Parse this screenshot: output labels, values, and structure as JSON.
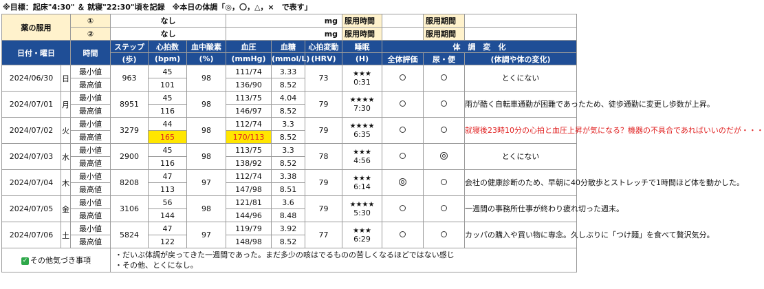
{
  "top_note": "※目標：起床\"4:30\" ＆ 就寝\"22:30\"頃を記録　※本日の体調「◎，〇，△，×　で表す」",
  "medication": {
    "label": "薬の服用",
    "rows": [
      {
        "num": "①",
        "name": "なし",
        "unit": "mg",
        "time_label": "服用時間",
        "time_value": "",
        "period_label": "服用期間",
        "period_value": ""
      },
      {
        "num": "②",
        "name": "なし",
        "unit": "mg",
        "time_label": "服用時間",
        "time_value": "",
        "period_label": "服用期間",
        "period_value": ""
      }
    ]
  },
  "headers": {
    "date": "日付・曜日",
    "time": "時間",
    "steps": "ステップ",
    "steps_unit": "(歩)",
    "heart": "心拍数",
    "heart_unit": "(bpm)",
    "spo2": "血中酸素",
    "spo2_unit": "(%)",
    "bp": "血圧",
    "bp_unit": "(mmHg)",
    "sugar": "血糖",
    "sugar_unit": "(mmol/L)",
    "hrv": "心拍変動",
    "hrv_unit": "(HRV)",
    "sleep": "睡眠",
    "sleep_unit": "(H)",
    "condition": "体　調　変　化",
    "overall": "全体評価",
    "urine": "尿・便",
    "change": "(体調や体の変化)"
  },
  "row_labels": {
    "min": "最小値",
    "max": "最高値"
  },
  "days": [
    {
      "date": "2024/06/30",
      "dow": "日",
      "steps": "963",
      "hr_min": "45",
      "hr_max": "101",
      "spo2": "98",
      "bp_min": "111/74",
      "bp_max": "136/90",
      "sugar_min": "3.33",
      "sugar_max": "8.52",
      "hrv": "73",
      "stars": "★★★",
      "sleep": "0:31",
      "overall": "〇",
      "urine": "〇",
      "note": "とくにない",
      "note_red": false,
      "hl_max": false
    },
    {
      "date": "2024/07/01",
      "dow": "月",
      "steps": "8951",
      "hr_min": "45",
      "hr_max": "116",
      "spo2": "98",
      "bp_min": "113/75",
      "bp_max": "146/97",
      "sugar_min": "4.04",
      "sugar_max": "8.52",
      "hrv": "79",
      "stars": "★★★★",
      "sleep": "7:30",
      "overall": "〇",
      "urine": "〇",
      "note": "雨が酷く自転車通勤が困難であったため、徒歩通勤に変更し歩数が上昇。",
      "note_red": false,
      "hl_max": false
    },
    {
      "date": "2024/07/02",
      "dow": "火",
      "steps": "3279",
      "hr_min": "44",
      "hr_max": "165",
      "spo2": "98",
      "bp_min": "112/74",
      "bp_max": "170/113",
      "sugar_min": "3.3",
      "sugar_max": "8.52",
      "hrv": "79",
      "stars": "★★★★",
      "sleep": "6:35",
      "overall": "〇",
      "urine": "〇",
      "note": "就寝後23時10分の心拍と血圧上昇が気になる？機器の不具合であればいいのだが・・・",
      "note_red": true,
      "hl_max": true
    },
    {
      "date": "2024/07/03",
      "dow": "水",
      "steps": "2900",
      "hr_min": "45",
      "hr_max": "116",
      "spo2": "98",
      "bp_min": "113/75",
      "bp_max": "138/92",
      "sugar_min": "3.3",
      "sugar_max": "8.52",
      "hrv": "78",
      "stars": "★★★",
      "sleep": "4:56",
      "overall": "〇",
      "urine": "◎",
      "note": "とくにない",
      "note_red": false,
      "hl_max": false
    },
    {
      "date": "2024/07/04",
      "dow": "木",
      "steps": "8208",
      "hr_min": "47",
      "hr_max": "113",
      "spo2": "97",
      "bp_min": "112/74",
      "bp_max": "147/98",
      "sugar_min": "3.38",
      "sugar_max": "8.51",
      "hrv": "79",
      "stars": "★★★",
      "sleep": "6:14",
      "overall": "◎",
      "urine": "〇",
      "note": "会社の健康診断のため、早朝に40分散歩とストレッチで1時間ほど体を動かした。",
      "note_red": false,
      "hl_max": false
    },
    {
      "date": "2024/07/05",
      "dow": "金",
      "steps": "3106",
      "hr_min": "56",
      "hr_max": "144",
      "spo2": "98",
      "bp_min": "121/81",
      "bp_max": "144/96",
      "sugar_min": "3.6",
      "sugar_max": "8.48",
      "hrv": "79",
      "stars": "★★★★",
      "sleep": "5:30",
      "overall": "〇",
      "urine": "〇",
      "note": "一週間の事務所仕事が終わり疲れ切った週末。",
      "note_red": false,
      "hl_max": false
    },
    {
      "date": "2024/07/06",
      "dow": "土",
      "steps": "5824",
      "hr_min": "47",
      "hr_max": "122",
      "spo2": "97",
      "bp_min": "119/79",
      "bp_max": "148/98",
      "sugar_min": "3.92",
      "sugar_max": "8.52",
      "hrv": "77",
      "stars": "★★★",
      "sleep": "6:29",
      "overall": "〇",
      "urine": "〇",
      "note": "カッパの購入や買い物に専念。久しぶりに「つけ麺」を食べて贅沢気分。",
      "note_red": false,
      "hl_max": false
    }
  ],
  "other": {
    "label": "その他気づき事項",
    "line1": "・だいぶ体調が戻ってきた一週間であった。まだ多少の咳はでるものの苦しくなるほどではない感じ",
    "line2": "・その他、とくになし。"
  }
}
